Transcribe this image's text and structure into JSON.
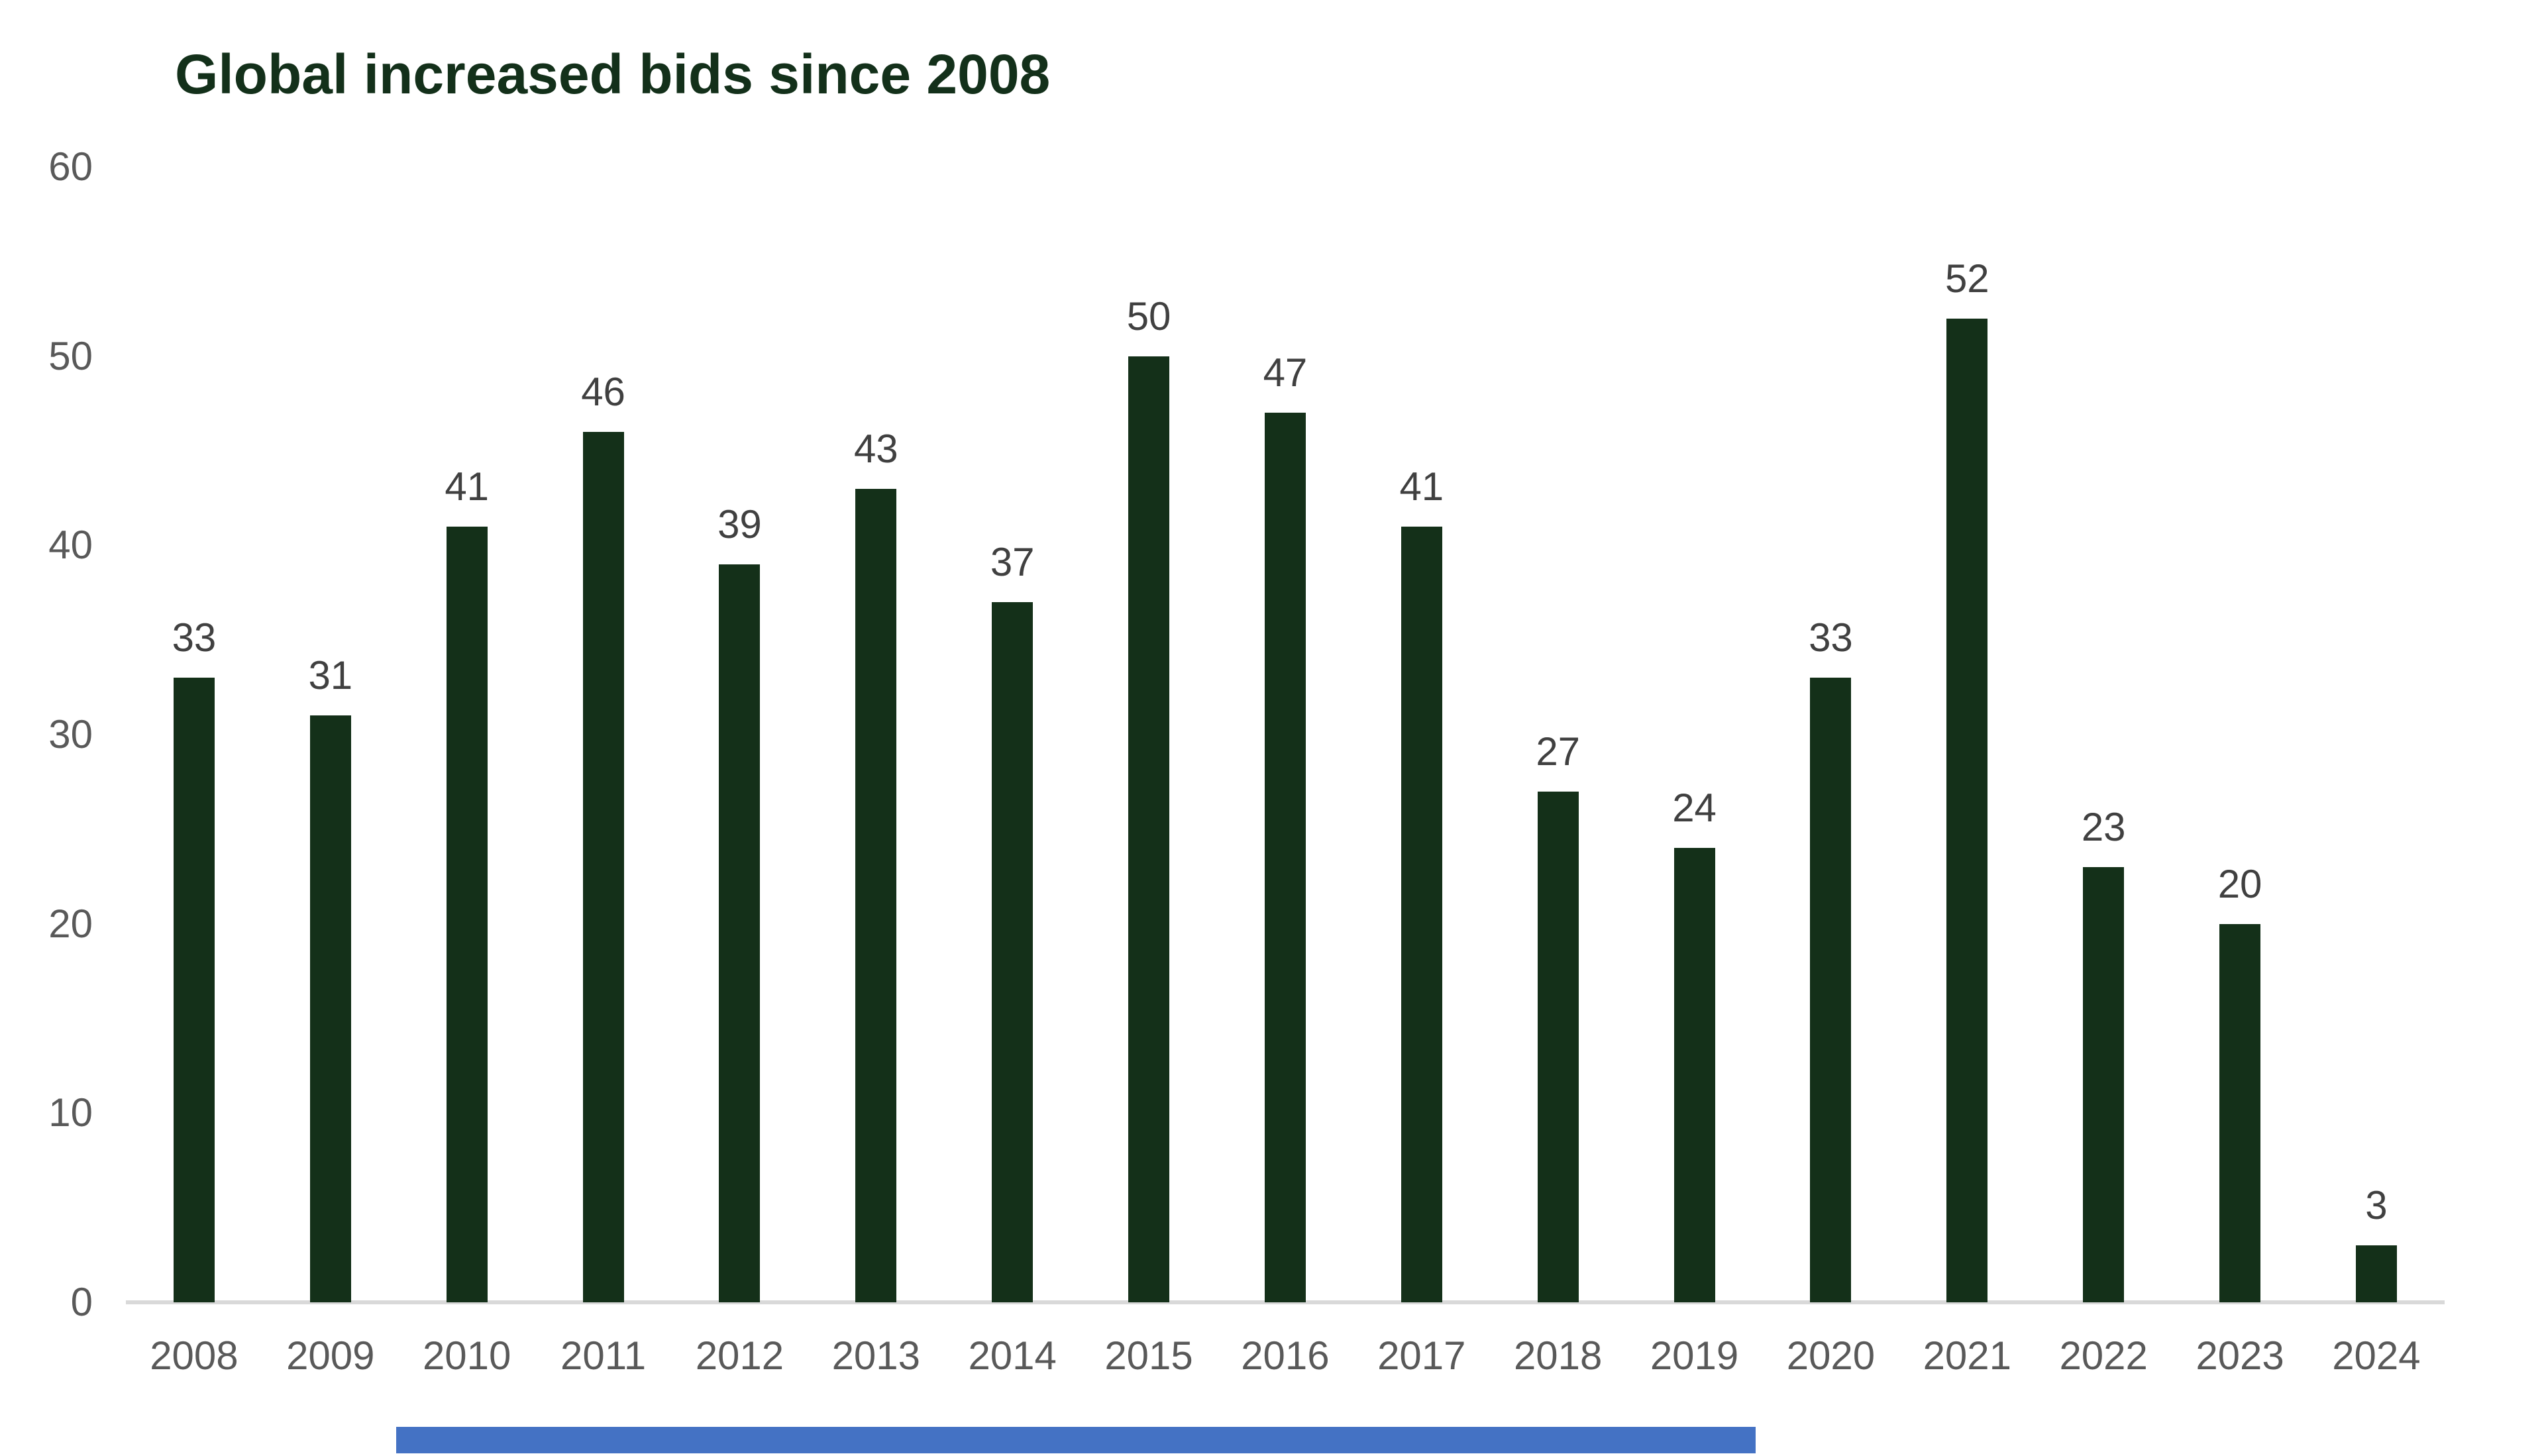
{
  "title": "Global increased bids since 2008",
  "chart_data": {
    "type": "bar",
    "title": "Global increased bids since 2008",
    "categories": [
      "2008",
      "2009",
      "2010",
      "2011",
      "2012",
      "2013",
      "2014",
      "2015",
      "2016",
      "2017",
      "2018",
      "2019",
      "2020",
      "2021",
      "2022",
      "2023",
      "2024"
    ],
    "values": [
      33,
      31,
      41,
      46,
      39,
      43,
      37,
      50,
      47,
      41,
      27,
      24,
      33,
      52,
      23,
      20,
      3
    ],
    "xlabel": "",
    "ylabel": "",
    "ylim": [
      0,
      60
    ],
    "yticks": [
      60,
      50,
      40,
      30,
      20,
      10,
      0
    ],
    "grid": false,
    "legend": false,
    "data_labels": true,
    "colors": {
      "bar": "#143019",
      "title": "#13301a",
      "value_label": "#404040",
      "axis_label": "#595959",
      "axis_line": "#d9d9d9",
      "scrollbar": "#4472c4"
    }
  }
}
